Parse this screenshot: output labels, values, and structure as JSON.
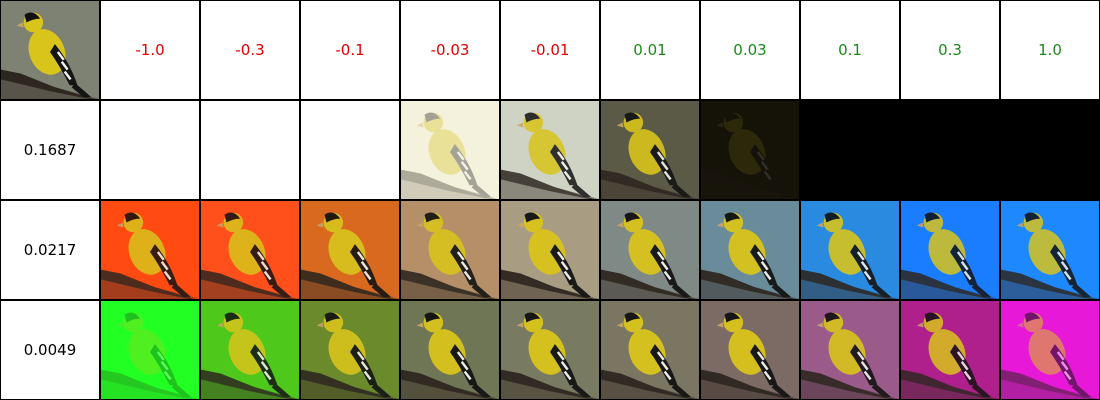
{
  "header": {
    "column_values": [
      "-1.0",
      "-0.3",
      "-0.1",
      "-0.03",
      "-0.01",
      "0.01",
      "0.03",
      "0.1",
      "0.3",
      "1.0"
    ],
    "negative_color": "#e10000",
    "positive_color": "#1a8a1a"
  },
  "rows": [
    {
      "label": "0.1687",
      "tints": [
        "#ffffff",
        "#ffffff",
        "#ffffff",
        "#f4f2dc",
        "#cfd3c4",
        "#5a5a46",
        "#151208",
        "#000000",
        "#000000",
        "#000000"
      ],
      "bird_visibility": [
        0,
        0,
        0,
        0.35,
        0.85,
        0.9,
        0.12,
        0,
        0,
        0
      ]
    },
    {
      "label": "0.0217",
      "tints": [
        "#ff4a12",
        "#ff4f1a",
        "#d8691e",
        "#b58f68",
        "#a89c82",
        "#7f8a86",
        "#6a8c9a",
        "#2a8ae0",
        "#1a7cff",
        "#1e88ff"
      ],
      "bird_visibility": [
        0.85,
        0.85,
        0.9,
        0.9,
        0.95,
        0.95,
        0.95,
        0.9,
        0.85,
        0.85
      ]
    },
    {
      "label": "0.0049",
      "tints": [
        "#22ff22",
        "#4ec81a",
        "#6a8a2c",
        "#6e7656",
        "#787a62",
        "#7a7662",
        "#7c6a64",
        "#9a5a8a",
        "#b0208c",
        "#e818d8"
      ],
      "bird_visibility": [
        0.25,
        0.85,
        0.9,
        0.95,
        0.95,
        0.95,
        0.95,
        0.9,
        0.85,
        0.55
      ]
    }
  ],
  "original_image": {
    "icon": "goldfinch-photo",
    "tint": "#7e8272"
  }
}
